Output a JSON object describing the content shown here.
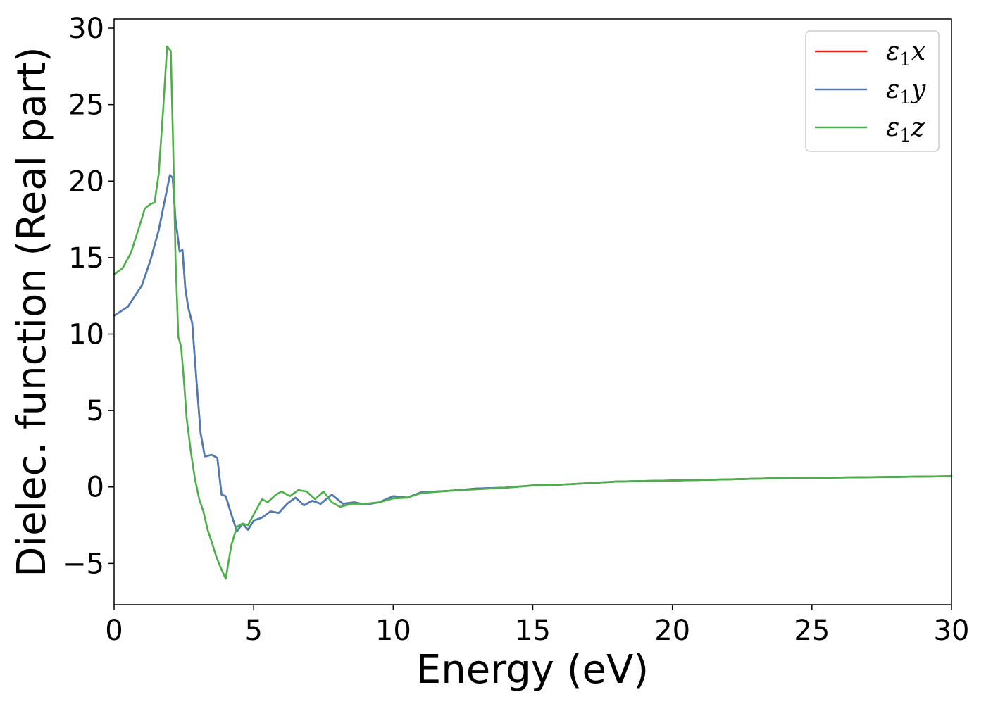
{
  "chart_data": {
    "type": "line",
    "title": "",
    "xlabel": "Energy (eV)",
    "ylabel": "Dielec. function (Real part)",
    "xlim": [
      0,
      30
    ],
    "ylim": [
      -7.7,
      30.6
    ],
    "xticks": [
      0,
      5,
      10,
      15,
      20,
      25,
      30
    ],
    "xtick_labels": [
      "0",
      "5",
      "10",
      "15",
      "20",
      "25",
      "30"
    ],
    "yticks": [
      -5,
      0,
      5,
      10,
      15,
      20,
      25,
      30
    ],
    "ytick_labels": [
      "−5",
      "0",
      "5",
      "10",
      "15",
      "20",
      "25",
      "30"
    ],
    "grid": false,
    "legend_position": "top-right",
    "series": [
      {
        "name": "ε₁x",
        "legend_base": "ε",
        "legend_sub": "1",
        "legend_var": "x",
        "color": "#e41a1c",
        "x": [
          0,
          0.5,
          1.0,
          1.3,
          1.6,
          1.8,
          2.0,
          2.1,
          2.2,
          2.35,
          2.45,
          2.55,
          2.65,
          2.8,
          2.95,
          3.1,
          3.25,
          3.5,
          3.7,
          3.85,
          4.0,
          4.2,
          4.4,
          4.6,
          4.8,
          5.0,
          5.3,
          5.6,
          5.9,
          6.2,
          6.5,
          6.8,
          7.1,
          7.4,
          7.8,
          8.2,
          8.6,
          9.0,
          9.5,
          10.0,
          10.5,
          11.0,
          12.0,
          13.0,
          14.0,
          15.0,
          16.0,
          18.0,
          20.0,
          22.0,
          24.0,
          26.0,
          28.0,
          30.0
        ],
        "y": [
          11.2,
          11.8,
          13.2,
          14.8,
          16.8,
          18.6,
          20.4,
          20.2,
          17.5,
          15.4,
          15.5,
          13.0,
          11.8,
          10.7,
          7.0,
          3.5,
          2.0,
          2.1,
          1.9,
          -0.5,
          -0.6,
          -1.8,
          -2.9,
          -2.4,
          -2.8,
          -2.2,
          -2.0,
          -1.6,
          -1.7,
          -1.1,
          -0.7,
          -1.2,
          -0.9,
          -1.1,
          -0.5,
          -1.1,
          -1.0,
          -1.15,
          -1.0,
          -0.6,
          -0.7,
          -0.35,
          -0.25,
          -0.1,
          -0.05,
          0.1,
          0.15,
          0.35,
          0.42,
          0.5,
          0.58,
          0.62,
          0.66,
          0.7
        ]
      },
      {
        "name": "ε₁y",
        "legend_base": "ε",
        "legend_sub": "1",
        "legend_var": "y",
        "color": "#4a7db8",
        "x": [
          0,
          0.5,
          1.0,
          1.3,
          1.6,
          1.8,
          2.0,
          2.1,
          2.2,
          2.35,
          2.45,
          2.55,
          2.65,
          2.8,
          2.95,
          3.1,
          3.25,
          3.5,
          3.7,
          3.85,
          4.0,
          4.2,
          4.4,
          4.6,
          4.8,
          5.0,
          5.3,
          5.6,
          5.9,
          6.2,
          6.5,
          6.8,
          7.1,
          7.4,
          7.8,
          8.2,
          8.6,
          9.0,
          9.5,
          10.0,
          10.5,
          11.0,
          12.0,
          13.0,
          14.0,
          15.0,
          16.0,
          18.0,
          20.0,
          22.0,
          24.0,
          26.0,
          28.0,
          30.0
        ],
        "y": [
          11.2,
          11.8,
          13.2,
          14.8,
          16.8,
          18.6,
          20.4,
          20.2,
          17.5,
          15.4,
          15.5,
          13.0,
          11.8,
          10.7,
          7.0,
          3.5,
          2.0,
          2.1,
          1.9,
          -0.5,
          -0.6,
          -1.8,
          -2.9,
          -2.4,
          -2.8,
          -2.2,
          -2.0,
          -1.6,
          -1.7,
          -1.1,
          -0.7,
          -1.2,
          -0.9,
          -1.1,
          -0.5,
          -1.1,
          -1.0,
          -1.15,
          -1.0,
          -0.6,
          -0.7,
          -0.35,
          -0.25,
          -0.1,
          -0.05,
          0.1,
          0.15,
          0.35,
          0.42,
          0.5,
          0.58,
          0.62,
          0.66,
          0.7
        ]
      },
      {
        "name": "ε₁z",
        "legend_base": "ε",
        "legend_sub": "1",
        "legend_var": "z",
        "color": "#4daf4a",
        "x": [
          0,
          0.3,
          0.6,
          0.9,
          1.1,
          1.3,
          1.45,
          1.6,
          1.75,
          1.9,
          2.03,
          2.12,
          2.2,
          2.3,
          2.4,
          2.5,
          2.6,
          2.75,
          2.9,
          3.05,
          3.2,
          3.35,
          3.5,
          3.65,
          3.8,
          4.0,
          4.2,
          4.4,
          4.6,
          4.8,
          5.0,
          5.3,
          5.5,
          5.8,
          6.0,
          6.3,
          6.6,
          6.9,
          7.2,
          7.5,
          7.8,
          8.1,
          8.5,
          9.0,
          9.5,
          10.0,
          10.5,
          11.0,
          12.0,
          13.0,
          14.0,
          15.0,
          16.0,
          18.0,
          20.0,
          22.0,
          24.0,
          26.0,
          28.0,
          30.0
        ],
        "y": [
          13.9,
          14.3,
          15.3,
          17.0,
          18.2,
          18.5,
          18.6,
          20.5,
          24.5,
          28.8,
          28.5,
          22.0,
          15.0,
          9.8,
          9.2,
          7.0,
          4.5,
          2.3,
          0.5,
          -0.8,
          -1.6,
          -2.8,
          -3.6,
          -4.5,
          -5.2,
          -6.0,
          -3.8,
          -2.6,
          -2.4,
          -2.5,
          -1.8,
          -0.8,
          -1.0,
          -0.5,
          -0.3,
          -0.6,
          -0.2,
          -0.3,
          -0.8,
          -0.3,
          -1.0,
          -1.3,
          -1.1,
          -1.1,
          -1.0,
          -0.75,
          -0.7,
          -0.4,
          -0.25,
          -0.15,
          -0.05,
          0.1,
          0.15,
          0.35,
          0.42,
          0.5,
          0.58,
          0.62,
          0.66,
          0.7
        ]
      }
    ]
  }
}
